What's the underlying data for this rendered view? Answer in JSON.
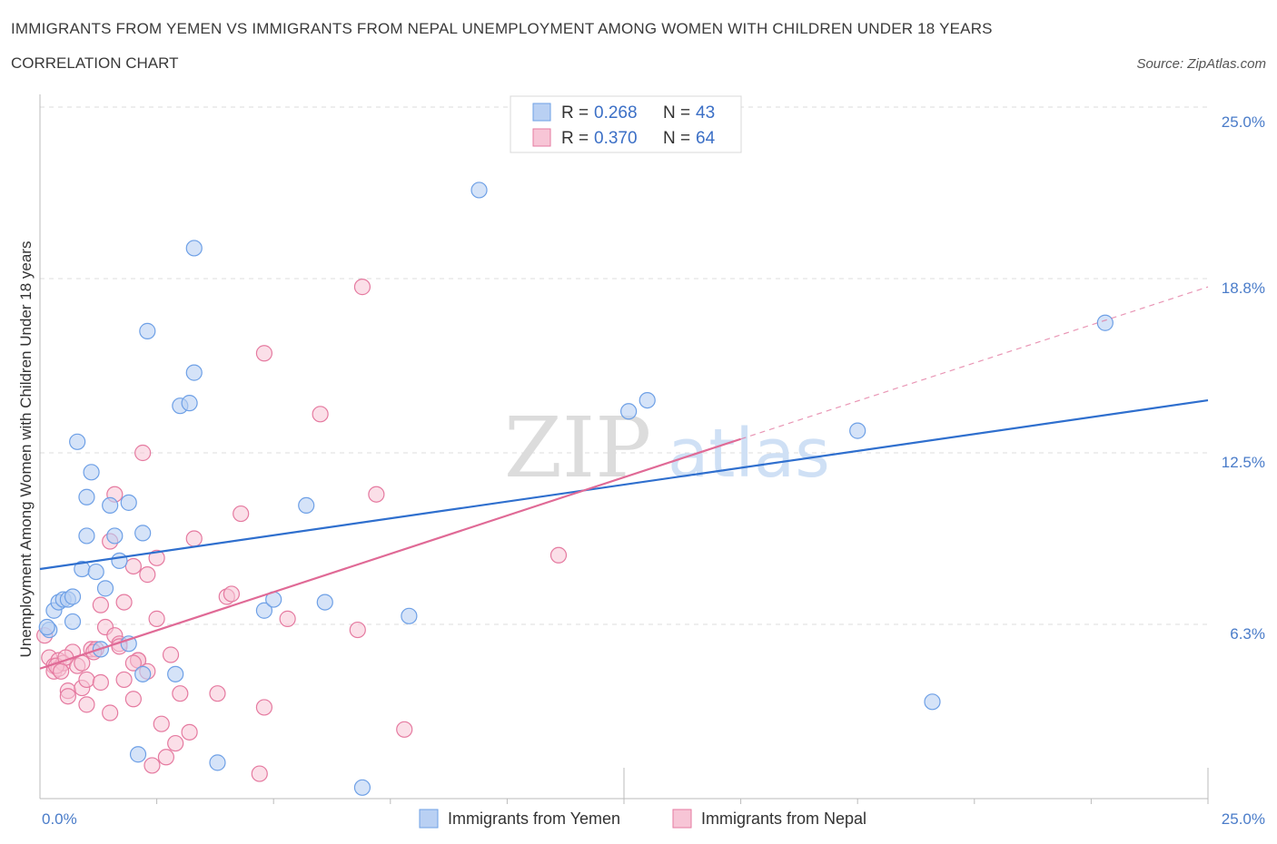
{
  "header": {
    "title": "IMMIGRANTS FROM YEMEN VS IMMIGRANTS FROM NEPAL UNEMPLOYMENT AMONG WOMEN WITH CHILDREN UNDER 18 YEARS",
    "subtitle": "CORRELATION CHART",
    "source": "Source: ZipAtlas.com"
  },
  "colors": {
    "yemen": "#6ea0e6",
    "yemen_fill": "#b9d0f3",
    "nepal": "#e57aa0",
    "nepal_fill": "#f7c5d6",
    "yemen_line": "#2f6fce",
    "nepal_line": "#e06a96",
    "grid": "#dddddd",
    "axis_label": "#4a7cc9"
  },
  "chart_data": {
    "type": "scatter",
    "title": "IMMIGRANTS FROM YEMEN VS IMMIGRANTS FROM NEPAL UNEMPLOYMENT AMONG WOMEN WITH CHILDREN UNDER 18 YEARS",
    "xlabel": "",
    "ylabel": "Unemployment Among Women with Children Under 18 years",
    "xlim": [
      0,
      25
    ],
    "ylim": [
      0,
      25
    ],
    "x_tick_labels": [
      "0.0%",
      "25.0%"
    ],
    "y_ticks": [
      6.3,
      12.5,
      18.8,
      25.0
    ],
    "y_tick_labels": [
      "6.3%",
      "12.5%",
      "18.8%",
      "25.0%"
    ],
    "legend_position": "top-center",
    "watermark": "ZIPatlas",
    "legend": [
      {
        "r_label": "R =",
        "r_value": "0.268",
        "n_label": "N =",
        "n_value": "43"
      },
      {
        "r_label": "R =",
        "r_value": "0.370",
        "n_label": "N =",
        "n_value": "64"
      }
    ],
    "series": [
      {
        "name": "Immigrants from Yemen",
        "trend": {
          "x": [
            0,
            25
          ],
          "y": [
            8.3,
            14.4
          ],
          "dashed_after": null
        },
        "points": [
          [
            0.2,
            6.1
          ],
          [
            0.3,
            6.8
          ],
          [
            0.4,
            7.1
          ],
          [
            0.5,
            7.2
          ],
          [
            0.6,
            7.2
          ],
          [
            0.7,
            7.3
          ],
          [
            0.7,
            6.4
          ],
          [
            0.8,
            12.9
          ],
          [
            0.9,
            8.3
          ],
          [
            1.0,
            10.9
          ],
          [
            1.0,
            9.5
          ],
          [
            1.1,
            11.8
          ],
          [
            1.2,
            8.2
          ],
          [
            1.3,
            5.4
          ],
          [
            1.4,
            7.6
          ],
          [
            1.5,
            10.6
          ],
          [
            1.6,
            9.5
          ],
          [
            1.7,
            8.6
          ],
          [
            1.9,
            10.7
          ],
          [
            1.9,
            5.6
          ],
          [
            2.1,
            1.6
          ],
          [
            2.2,
            9.6
          ],
          [
            2.2,
            4.5
          ],
          [
            2.3,
            16.9
          ],
          [
            2.9,
            4.5
          ],
          [
            3.0,
            14.2
          ],
          [
            3.2,
            14.3
          ],
          [
            3.3,
            15.4
          ],
          [
            3.3,
            19.9
          ],
          [
            3.8,
            1.3
          ],
          [
            4.8,
            6.8
          ],
          [
            5.0,
            7.2
          ],
          [
            5.7,
            10.6
          ],
          [
            6.1,
            7.1
          ],
          [
            6.9,
            0.4
          ],
          [
            7.9,
            6.6
          ],
          [
            9.4,
            22.0
          ],
          [
            12.6,
            14.0
          ],
          [
            13.0,
            14.4
          ],
          [
            17.5,
            13.3
          ],
          [
            19.1,
            3.5
          ],
          [
            22.8,
            17.2
          ],
          [
            0.15,
            6.2
          ]
        ]
      },
      {
        "name": "Immigrants from Nepal",
        "trend": {
          "x": [
            0,
            15
          ],
          "y": [
            4.7,
            13.0
          ],
          "dash_to": [
            25,
            18.5
          ]
        },
        "points": [
          [
            0.1,
            5.9
          ],
          [
            0.2,
            5.1
          ],
          [
            0.3,
            4.8
          ],
          [
            0.3,
            4.6
          ],
          [
            0.4,
            5.0
          ],
          [
            0.4,
            4.7
          ],
          [
            0.5,
            4.9
          ],
          [
            0.6,
            3.9
          ],
          [
            0.6,
            3.7
          ],
          [
            0.7,
            5.3
          ],
          [
            0.8,
            4.8
          ],
          [
            0.9,
            4.0
          ],
          [
            0.9,
            4.9
          ],
          [
            1.0,
            3.4
          ],
          [
            1.0,
            4.3
          ],
          [
            1.1,
            5.4
          ],
          [
            1.2,
            5.4
          ],
          [
            1.3,
            4.2
          ],
          [
            1.3,
            7.0
          ],
          [
            1.4,
            6.2
          ],
          [
            1.5,
            9.3
          ],
          [
            1.5,
            3.1
          ],
          [
            1.6,
            11.0
          ],
          [
            1.6,
            5.9
          ],
          [
            1.7,
            5.6
          ],
          [
            1.8,
            4.3
          ],
          [
            1.8,
            7.1
          ],
          [
            2.0,
            3.6
          ],
          [
            2.0,
            8.4
          ],
          [
            2.1,
            5.0
          ],
          [
            2.1,
            5.0
          ],
          [
            2.2,
            12.5
          ],
          [
            2.3,
            4.6
          ],
          [
            2.3,
            8.1
          ],
          [
            2.4,
            1.2
          ],
          [
            2.5,
            8.7
          ],
          [
            2.5,
            6.5
          ],
          [
            2.6,
            2.7
          ],
          [
            2.7,
            1.5
          ],
          [
            2.8,
            5.2
          ],
          [
            2.9,
            2.0
          ],
          [
            3.0,
            3.8
          ],
          [
            3.2,
            2.4
          ],
          [
            3.3,
            9.4
          ],
          [
            3.8,
            3.8
          ],
          [
            4.0,
            7.3
          ],
          [
            4.1,
            7.4
          ],
          [
            4.3,
            10.3
          ],
          [
            4.7,
            0.9
          ],
          [
            4.8,
            3.3
          ],
          [
            4.8,
            16.1
          ],
          [
            5.3,
            6.5
          ],
          [
            6.0,
            13.9
          ],
          [
            6.8,
            6.1
          ],
          [
            6.9,
            18.5
          ],
          [
            7.2,
            11.0
          ],
          [
            7.8,
            2.5
          ],
          [
            11.1,
            8.8
          ],
          [
            0.35,
            4.8
          ],
          [
            0.55,
            5.1
          ],
          [
            1.15,
            5.3
          ],
          [
            1.7,
            5.5
          ],
          [
            2.0,
            4.9
          ],
          [
            0.45,
            4.6
          ]
        ]
      }
    ]
  },
  "bottom_legend": [
    "Immigrants from Yemen",
    "Immigrants from Nepal"
  ]
}
